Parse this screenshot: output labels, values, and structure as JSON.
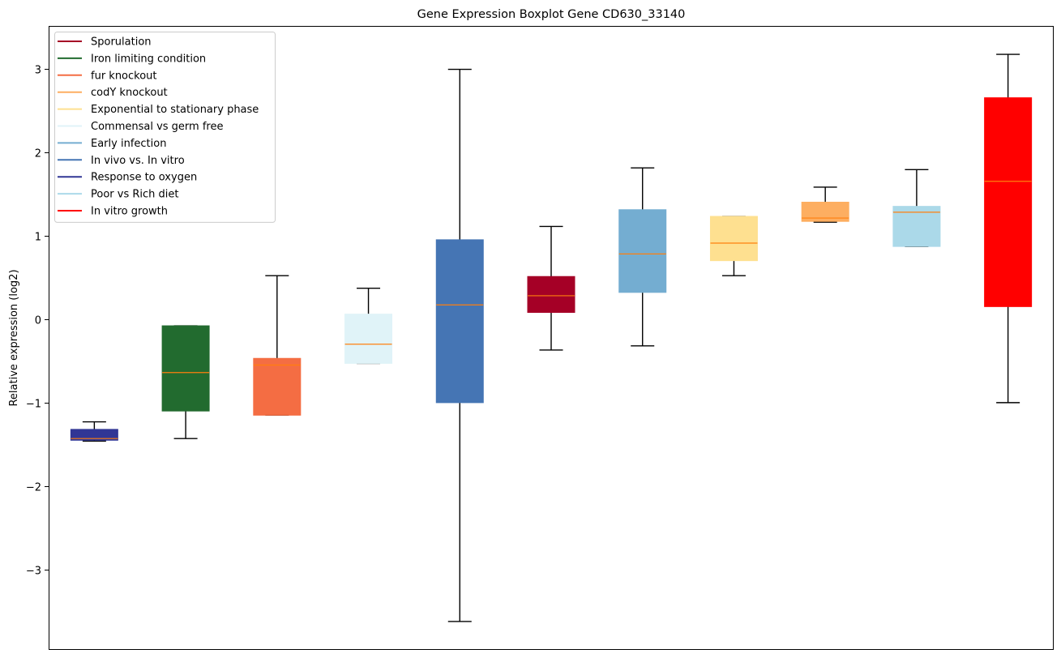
{
  "chart_data": {
    "type": "box",
    "title": "Gene Expression Boxplot Gene CD630_33140",
    "xlabel": "",
    "ylabel": "Relative expression (log2)",
    "ylim": [
      -3.96,
      3.51
    ],
    "yticks": [
      3,
      2,
      1,
      0,
      -1,
      -2,
      -3
    ],
    "ytick_labels": [
      "3",
      "2",
      "1",
      "0",
      "−1",
      "−2",
      "−3"
    ],
    "grid": false,
    "legend_position": "top-left",
    "median_color": "#ff7f0e",
    "legend": [
      {
        "label": "Sporulation",
        "color": "#a50026"
      },
      {
        "label": "Iron limiting condition",
        "color": "#226b2f"
      },
      {
        "label": "fur knockout",
        "color": "#f46d43"
      },
      {
        "label": "codY knockout",
        "color": "#fdae61"
      },
      {
        "label": "Exponential to stationary phase",
        "color": "#fee090"
      },
      {
        "label": "Commensal vs germ free",
        "color": "#e0f3f8"
      },
      {
        "label": "Early infection",
        "color": "#74add1"
      },
      {
        "label": "In vivo vs. In vitro",
        "color": "#4575b4"
      },
      {
        "label": "Response to oxygen",
        "color": "#313695"
      },
      {
        "label": "Poor vs Rich diet",
        "color": "#abd9e9"
      },
      {
        "label": "In vitro growth",
        "color": "#ff0000"
      }
    ],
    "boxes": [
      {
        "name": "Response to oxygen",
        "color": "#313695",
        "whisker_low": -1.46,
        "q1": -1.45,
        "median": -1.43,
        "q3": -1.32,
        "whisker_high": -1.23
      },
      {
        "name": "Iron limiting condition",
        "color": "#226b2f",
        "whisker_low": -1.43,
        "q1": -1.1,
        "median": -0.64,
        "q3": -0.08,
        "whisker_high": -0.08
      },
      {
        "name": "fur knockout",
        "color": "#f46d43",
        "whisker_low": -1.15,
        "q1": -1.15,
        "median": -0.55,
        "q3": -0.47,
        "whisker_high": 0.52
      },
      {
        "name": "Commensal vs germ free",
        "color": "#e0f3f8",
        "whisker_low": -0.53,
        "q1": -0.53,
        "median": -0.3,
        "q3": 0.06,
        "whisker_high": 0.37
      },
      {
        "name": "In vivo vs. In vitro",
        "color": "#4575b4",
        "whisker_low": -3.62,
        "q1": -1.0,
        "median": 0.17,
        "q3": 0.95,
        "whisker_high": 2.99
      },
      {
        "name": "Sporulation",
        "color": "#a50026",
        "whisker_low": -0.37,
        "q1": 0.08,
        "median": 0.28,
        "q3": 0.51,
        "whisker_high": 1.11
      },
      {
        "name": "Early infection",
        "color": "#74add1",
        "whisker_low": -0.32,
        "q1": 0.32,
        "median": 0.78,
        "q3": 1.31,
        "whisker_high": 1.81
      },
      {
        "name": "Exponential to stationary phase",
        "color": "#fee090",
        "whisker_low": 0.52,
        "q1": 0.7,
        "median": 0.91,
        "q3": 1.23,
        "whisker_high": 1.23
      },
      {
        "name": "codY knockout",
        "color": "#fdae61",
        "whisker_low": 1.16,
        "q1": 1.17,
        "median": 1.21,
        "q3": 1.4,
        "whisker_high": 1.58
      },
      {
        "name": "Poor vs Rich diet",
        "color": "#abd9e9",
        "whisker_low": 0.87,
        "q1": 0.87,
        "median": 1.28,
        "q3": 1.35,
        "whisker_high": 1.79
      },
      {
        "name": "In vitro growth",
        "color": "#ff0000",
        "whisker_low": -1.0,
        "q1": 0.15,
        "median": 1.65,
        "q3": 2.65,
        "whisker_high": 3.17
      }
    ]
  }
}
